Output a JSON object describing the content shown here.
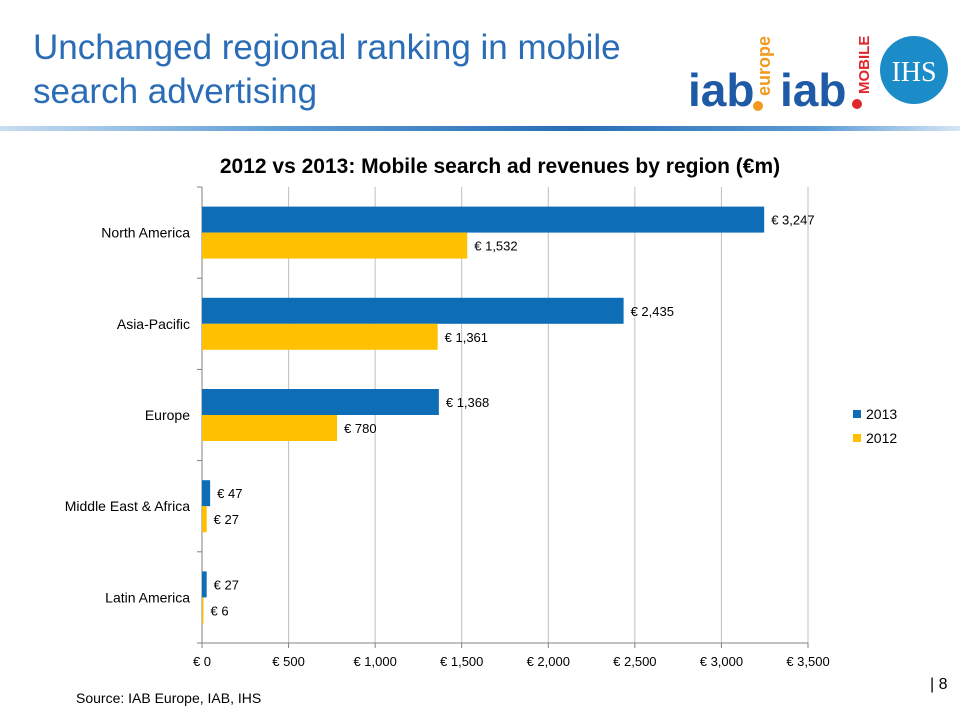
{
  "slide": {
    "title": "Unchanged regional ranking in mobile search advertising",
    "source": "Source: IAB Europe, IAB, IHS",
    "page_number": "| 8"
  },
  "logos": {
    "iab_europe": {
      "main": "iab",
      "sub": "europe"
    },
    "iab_mobile": {
      "main": "iab",
      "sub": "MOBILE"
    },
    "ihs": "IHS",
    "colors": {
      "iab_blue": "#1f5aa6",
      "iab_orange": "#f29a1d",
      "iab_red": "#e0262b",
      "ihs_blue": "#1c8cc8"
    }
  },
  "chart_data": {
    "type": "bar",
    "orientation": "horizontal",
    "title": "2012 vs 2013: Mobile search ad revenues by region (€m)",
    "categories": [
      "North America",
      "Asia-Pacific",
      "Europe",
      "Middle East & Africa",
      "Latin America"
    ],
    "series": [
      {
        "name": "2013",
        "color": "#0e6db7",
        "values": [
          3247,
          2435,
          1368,
          47,
          27
        ],
        "labels": [
          "€ 3,247",
          "€ 2,435",
          "€ 1,368",
          "€ 47",
          "€ 27"
        ]
      },
      {
        "name": "2012",
        "color": "#ffc000",
        "values": [
          1532,
          1361,
          780,
          27,
          6
        ],
        "labels": [
          "€ 1,532",
          "€ 1,361",
          "€ 780",
          "€ 27",
          "€ 6"
        ]
      }
    ],
    "xlim": [
      0,
      3500
    ],
    "xticks": [
      0,
      500,
      1000,
      1500,
      2000,
      2500,
      3000,
      3500
    ],
    "xtick_labels": [
      "€ 0",
      "€ 500",
      "€ 1,000",
      "€ 1,500",
      "€ 2,000",
      "€ 2,500",
      "€ 3,000",
      "€ 3,500"
    ],
    "grid": "vertical",
    "legend": "right",
    "grid_color": "#bfbfbf"
  }
}
